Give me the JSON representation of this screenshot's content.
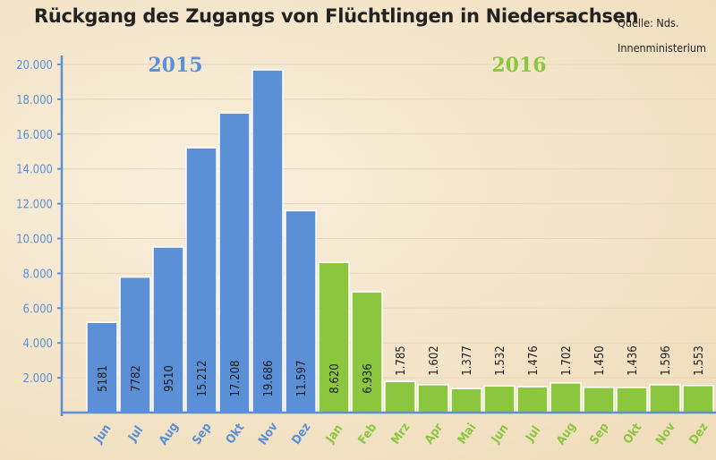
{
  "title": "Rückgang des Zugangs von Flüchtlingen in Niedersachsen",
  "source": [
    "Quelle: Nds.",
    "Innenministerium"
  ],
  "colors": {
    "y2015": "#5b8fd6",
    "y2016": "#8cc63f",
    "axis": "#5b8fd6",
    "grid": "#e6d7bb"
  },
  "chart_data": {
    "type": "bar",
    "ylim": [
      0,
      20000
    ],
    "yticks": [
      "2.000",
      "4.000",
      "6.000",
      "8.000",
      "10.000",
      "12.000",
      "14.000",
      "16.000",
      "18.000",
      "20.000"
    ],
    "series": [
      {
        "name": "2015",
        "categories": [
          "Jun",
          "Jul",
          "Aug",
          "Sep",
          "Okt",
          "Nov",
          "Dez"
        ],
        "values": [
          5181,
          7782,
          9510,
          15212,
          17208,
          19686,
          11597
        ],
        "labels": [
          "5181",
          "7782",
          "9510",
          "15.212",
          "17.208",
          "19.686",
          "11.597"
        ]
      },
      {
        "name": "2016",
        "categories": [
          "Jan",
          "Feb",
          "Mrz",
          "Apr",
          "Mai",
          "Jun",
          "Jul",
          "Aug",
          "Sep",
          "Okt",
          "Nov",
          "Dez"
        ],
        "values": [
          8620,
          6936,
          1785,
          1602,
          1377,
          1532,
          1476,
          1702,
          1450,
          1436,
          1596,
          1553
        ],
        "labels": [
          "8.620",
          "6.936",
          "1.785",
          "1.602",
          "1.377",
          "1.532",
          "1.476",
          "1.702",
          "1.450",
          "1.436",
          "1.596",
          "1.553"
        ]
      }
    ]
  }
}
